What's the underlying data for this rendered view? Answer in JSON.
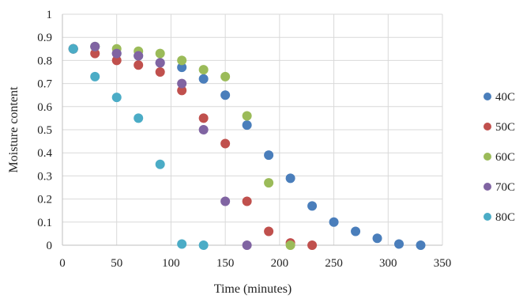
{
  "chart_data": {
    "type": "scatter",
    "title": "",
    "xlabel": "Time (minutes)",
    "ylabel": "Moisture content",
    "xlim": [
      0,
      350
    ],
    "ylim": [
      0,
      1
    ],
    "xticks": [
      0,
      50,
      100,
      150,
      200,
      250,
      300,
      350
    ],
    "yticks": [
      0,
      0.1,
      0.2,
      0.3,
      0.4,
      0.5,
      0.6,
      0.7,
      0.8,
      0.9,
      1
    ],
    "ytick_labels": [
      "0",
      "0.1",
      "0.2",
      "0.3",
      "0.4",
      "0.5",
      "0.6",
      "0.7",
      "0.8",
      "0.9",
      "1"
    ],
    "grid": "vertical-and-horizontal",
    "legend_position": "right",
    "series": [
      {
        "name": "40C",
        "color": "#4a7ebb",
        "points": [
          [
            10,
            0.85
          ],
          [
            30,
            0.86
          ],
          [
            50,
            0.83
          ],
          [
            70,
            0.82
          ],
          [
            90,
            0.79
          ],
          [
            110,
            0.77
          ],
          [
            130,
            0.72
          ],
          [
            150,
            0.65
          ],
          [
            170,
            0.52
          ],
          [
            190,
            0.39
          ],
          [
            210,
            0.29
          ],
          [
            230,
            0.17
          ],
          [
            250,
            0.1
          ],
          [
            270,
            0.06
          ],
          [
            290,
            0.03
          ],
          [
            310,
            0.005
          ],
          [
            330,
            0.0
          ]
        ]
      },
      {
        "name": "50C",
        "color": "#c0504d",
        "points": [
          [
            10,
            0.85
          ],
          [
            30,
            0.83
          ],
          [
            50,
            0.8
          ],
          [
            70,
            0.78
          ],
          [
            90,
            0.75
          ],
          [
            110,
            0.67
          ],
          [
            130,
            0.55
          ],
          [
            150,
            0.44
          ],
          [
            170,
            0.19
          ],
          [
            190,
            0.06
          ],
          [
            210,
            0.01
          ],
          [
            230,
            0.0
          ]
        ]
      },
      {
        "name": "60C",
        "color": "#9bbb59",
        "points": [
          [
            10,
            0.85
          ],
          [
            30,
            0.86
          ],
          [
            50,
            0.85
          ],
          [
            70,
            0.84
          ],
          [
            90,
            0.83
          ],
          [
            110,
            0.8
          ],
          [
            130,
            0.76
          ],
          [
            150,
            0.73
          ],
          [
            170,
            0.56
          ],
          [
            190,
            0.27
          ],
          [
            210,
            0.0
          ]
        ]
      },
      {
        "name": "70C",
        "color": "#8064a2",
        "points": [
          [
            10,
            0.85
          ],
          [
            30,
            0.86
          ],
          [
            50,
            0.83
          ],
          [
            70,
            0.82
          ],
          [
            90,
            0.79
          ],
          [
            110,
            0.7
          ],
          [
            130,
            0.5
          ],
          [
            150,
            0.19
          ],
          [
            170,
            0.0
          ]
        ]
      },
      {
        "name": "80C",
        "color": "#4bacc6",
        "points": [
          [
            10,
            0.85
          ],
          [
            30,
            0.73
          ],
          [
            50,
            0.64
          ],
          [
            70,
            0.55
          ],
          [
            90,
            0.35
          ],
          [
            110,
            0.005
          ],
          [
            130,
            0.0
          ]
        ]
      }
    ]
  }
}
